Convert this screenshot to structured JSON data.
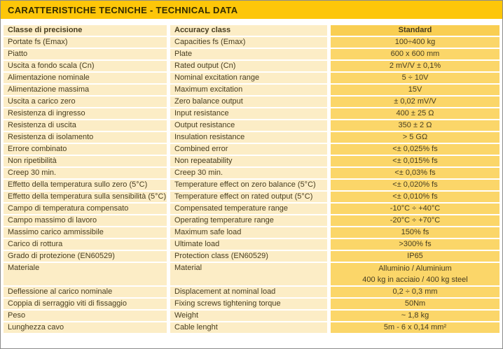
{
  "title": "CARATTERISTICHE TECNICHE - TECHNICAL DATA",
  "colors": {
    "title_bar": "#FDC609",
    "title_text": "#332B00",
    "label_cell": "#FCEDC6",
    "value_cell": "#FBD669",
    "value_header_cell": "#F9CE52",
    "table_text": "#473D20"
  },
  "table": {
    "headers": {
      "it": "Classe di precisione",
      "en": "Accuracy class",
      "value": "Standard"
    },
    "rows": [
      {
        "it": "Portate fs (Emax)",
        "en": "Capacities fs (Emax)",
        "value": "100÷400 kg"
      },
      {
        "it": "Piatto",
        "en": "Plate",
        "value": "600 x 600 mm"
      },
      {
        "it": "Uscita a fondo scala (Cn)",
        "en": "Rated output (Cn)",
        "value": "2 mV/V ± 0,1%"
      },
      {
        "it": "Alimentazione nominale",
        "en": "Nominal excitation range",
        "value": "5 ÷ 10V"
      },
      {
        "it": "Alimentazione massima",
        "en": "Maximum excitation",
        "value": "15V"
      },
      {
        "it": "Uscita a carico zero",
        "en": "Zero balance output",
        "value": "± 0,02 mV/V"
      },
      {
        "it": "Resistenza di ingresso",
        "en": "Input resistance",
        "value": "400 ± 25 Ω"
      },
      {
        "it": "Resistenza di uscita",
        "en": "Output resistance",
        "value": "350 ± 2 Ω"
      },
      {
        "it": "Resistenza di isolamento",
        "en": "Insulation resistance",
        "value": "> 5 GΩ"
      },
      {
        "it": "Errore combinato",
        "en": "Combined error",
        "value": "<± 0,025% fs"
      },
      {
        "it": "Non ripetibilità",
        "en": "Non repeatability",
        "value": "<± 0,015% fs"
      },
      {
        "it": "Creep 30 min.",
        "en": "Creep 30 min.",
        "value": "<± 0,03% fs"
      },
      {
        "it": "Effetto della temperatura sullo zero (5°C)",
        "en": "Temperature effect on zero balance (5°C)",
        "value": "<± 0,020% fs"
      },
      {
        "it": "Effetto della temperatura sulla sensibilità (5°C)",
        "en": "Temperature effect on rated output (5°C)",
        "value": "<± 0,010% fs"
      },
      {
        "it": "Campo di temperatura compensato",
        "en": "Compensated temperature range",
        "value": "-10°C ÷ +40°C"
      },
      {
        "it": "Campo massimo di lavoro",
        "en": "Operating temperature range",
        "value": "-20°C ÷ +70°C"
      },
      {
        "it": "Massimo carico ammissibile",
        "en": "Maximum safe load",
        "value": "150% fs"
      },
      {
        "it": "Carico di rottura",
        "en": "Ultimate load",
        "value": ">300% fs"
      },
      {
        "it": "Grado di protezione (EN60529)",
        "en": "Protection class (EN60529)",
        "value": "IP65"
      },
      {
        "it": "Materiale",
        "en": "Material",
        "value": "Alluminio / Aluminium",
        "value2": "400 kg in acciaio / 400 kg steel",
        "tall": true
      },
      {
        "it": "Deflessione al carico nominale",
        "en": "Displacement at nominal load",
        "value": "0,2 ÷ 0,3 mm"
      },
      {
        "it": "Coppia di serraggio viti di fissaggio",
        "en": "Fixing screws tightening torque",
        "value": "50Nm"
      },
      {
        "it": "Peso",
        "en": "Weight",
        "value": "~ 1,8 kg"
      },
      {
        "it": "Lunghezza cavo",
        "en": "Cable lenght",
        "value": "5m - 6 x 0,14 mm²"
      }
    ]
  }
}
